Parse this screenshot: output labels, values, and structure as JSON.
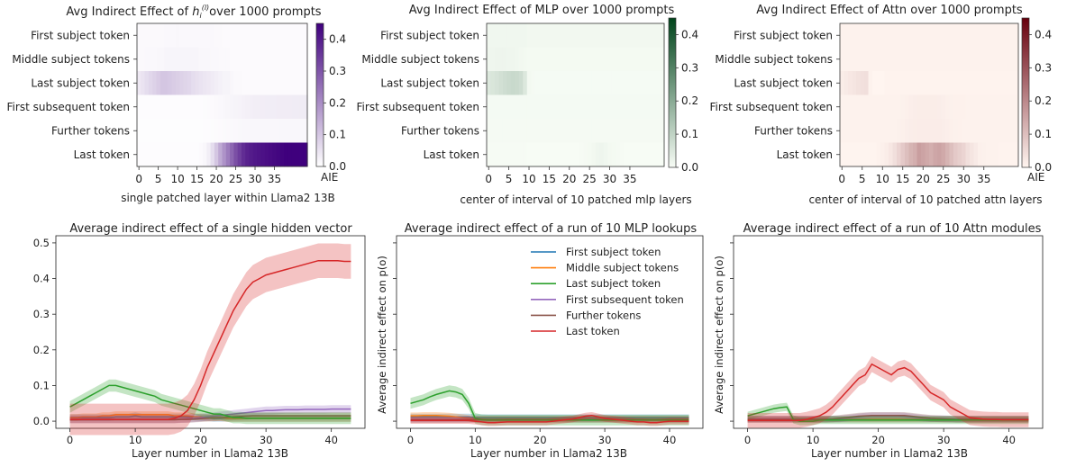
{
  "chart_data": [
    {
      "type": "heatmap",
      "title": "Avg Indirect Effect of h_i^(l) over 1000 prompts",
      "title_parts": [
        "Avg Indirect Effect of ",
        "h",
        "i",
        "(l)",
        "over 1000 prompts"
      ],
      "xlabel": "single patched layer within Llama2 13B",
      "xticks": [
        "0",
        "5",
        "10",
        "15",
        "20",
        "25",
        "30",
        "35"
      ],
      "rows": [
        "First subject token",
        "Middle subject tokens",
        "Last subject token",
        "First subsequent token",
        "Further tokens",
        "Last token"
      ],
      "colorbar": {
        "label": "AIE",
        "ticks": [
          "0.0",
          "0.1",
          "0.2",
          "0.3",
          "0.4"
        ],
        "range": [
          0,
          0.45
        ],
        "low": "#ffffff",
        "high": "#3f007d"
      },
      "cells": [
        [
          0.01,
          0.01,
          0.01,
          0.01,
          0.01,
          0.01,
          0.01,
          0.012,
          0.012,
          0.012,
          0.015,
          0.012,
          0.012,
          0.012,
          0.012,
          0.012,
          0.012,
          0.012,
          0.012,
          0.012,
          0.01,
          0.01,
          0.008,
          0.008,
          0.008,
          0.008,
          0.008,
          0.008,
          0.008,
          0.008,
          0.008,
          0.008,
          0.008,
          0.008,
          0.008,
          0.008,
          0.008,
          0.008,
          0.008,
          0.008,
          0.008,
          0.008,
          0.008,
          0.008
        ],
        [
          0.01,
          0.01,
          0.012,
          0.012,
          0.012,
          0.015,
          0.015,
          0.018,
          0.018,
          0.018,
          0.018,
          0.018,
          0.018,
          0.018,
          0.018,
          0.018,
          0.015,
          0.015,
          0.015,
          0.012,
          0.012,
          0.01,
          0.01,
          0.01,
          0.008,
          0.008,
          0.008,
          0.008,
          0.008,
          0.008,
          0.008,
          0.008,
          0.008,
          0.008,
          0.008,
          0.008,
          0.008,
          0.008,
          0.008,
          0.008,
          0.008,
          0.008,
          0.008,
          0.008
        ],
        [
          0.04,
          0.05,
          0.06,
          0.07,
          0.08,
          0.09,
          0.1,
          0.1,
          0.095,
          0.09,
          0.085,
          0.08,
          0.075,
          0.07,
          0.06,
          0.055,
          0.05,
          0.045,
          0.04,
          0.035,
          0.03,
          0.025,
          0.02,
          0.02,
          0.015,
          0.01,
          0.01,
          0.008,
          0.008,
          0.008,
          0.008,
          0.008,
          0.008,
          0.008,
          0.008,
          0.008,
          0.008,
          0.008,
          0.008,
          0.008,
          0.008,
          0.008,
          0.008,
          0.008
        ],
        [
          0.005,
          0.005,
          0.005,
          0.005,
          0.005,
          0.005,
          0.005,
          0.005,
          0.005,
          0.005,
          0.005,
          0.005,
          0.005,
          0.005,
          0.005,
          0.005,
          0.005,
          0.006,
          0.007,
          0.008,
          0.01,
          0.012,
          0.014,
          0.016,
          0.018,
          0.02,
          0.022,
          0.024,
          0.026,
          0.028,
          0.03,
          0.03,
          0.031,
          0.032,
          0.032,
          0.032,
          0.033,
          0.033,
          0.033,
          0.033,
          0.034,
          0.034,
          0.034,
          0.034
        ],
        [
          0.004,
          0.004,
          0.004,
          0.004,
          0.004,
          0.004,
          0.004,
          0.004,
          0.004,
          0.004,
          0.004,
          0.004,
          0.004,
          0.004,
          0.004,
          0.004,
          0.004,
          0.005,
          0.005,
          0.006,
          0.007,
          0.008,
          0.009,
          0.01,
          0.011,
          0.012,
          0.013,
          0.014,
          0.015,
          0.015,
          0.015,
          0.015,
          0.015,
          0.015,
          0.015,
          0.015,
          0.015,
          0.015,
          0.015,
          0.015,
          0.015,
          0.015,
          0.015,
          0.015
        ],
        [
          0.005,
          0.005,
          0.005,
          0.005,
          0.005,
          0.005,
          0.005,
          0.005,
          0.005,
          0.005,
          0.005,
          0.005,
          0.005,
          0.005,
          0.005,
          0.005,
          0.008,
          0.015,
          0.03,
          0.06,
          0.1,
          0.15,
          0.19,
          0.23,
          0.27,
          0.31,
          0.34,
          0.37,
          0.39,
          0.4,
          0.41,
          0.415,
          0.42,
          0.425,
          0.43,
          0.435,
          0.44,
          0.445,
          0.45,
          0.45,
          0.45,
          0.45,
          0.448,
          0.448
        ]
      ]
    },
    {
      "type": "heatmap",
      "title": "Avg Indirect Effect of MLP over 1000 prompts",
      "xlabel": "center of interval of 10 patched mlp layers",
      "xticks": [
        "0",
        "5",
        "10",
        "15",
        "20",
        "25",
        "30",
        "35"
      ],
      "rows": [
        "First subject token",
        "Middle subject tokens",
        "Last subject token",
        "First subsequent token",
        "Further tokens",
        "Last token"
      ],
      "colorbar": {
        "label": "",
        "ticks": [
          "0.0",
          "0.1",
          "0.2",
          "0.3",
          "0.4"
        ],
        "range": [
          0,
          0.45
        ],
        "low": "#f7fcf5",
        "high": "#00441b"
      },
      "cells": [
        [
          0.012,
          0.012,
          0.012,
          0.012,
          0.012,
          0.012,
          0.012,
          0.012,
          0.012,
          0.012,
          0.01,
          0.01,
          0.01,
          0.01,
          0.01,
          0.01,
          0.01,
          0.01,
          0.01,
          0.01,
          0.01,
          0.01,
          0.01,
          0.01,
          0.01,
          0.01,
          0.01,
          0.01,
          0.01,
          0.01,
          0.01,
          0.01,
          0.01,
          0.01,
          0.01,
          0.01,
          0.01,
          0.01,
          0.01,
          0.01,
          0.01,
          0.01,
          0.01,
          0.01
        ],
        [
          0.015,
          0.015,
          0.016,
          0.016,
          0.016,
          0.015,
          0.014,
          0.012,
          0.01,
          0.008,
          0.006,
          0.006,
          0.006,
          0.006,
          0.006,
          0.006,
          0.006,
          0.006,
          0.006,
          0.006,
          0.006,
          0.006,
          0.006,
          0.006,
          0.006,
          0.006,
          0.006,
          0.006,
          0.006,
          0.006,
          0.006,
          0.006,
          0.006,
          0.006,
          0.006,
          0.006,
          0.006,
          0.006,
          0.006,
          0.006,
          0.006,
          0.006,
          0.006,
          0.006
        ],
        [
          0.05,
          0.055,
          0.06,
          0.068,
          0.075,
          0.08,
          0.085,
          0.082,
          0.075,
          0.05,
          0.008,
          0.004,
          0.003,
          0.003,
          0.003,
          0.003,
          0.003,
          0.003,
          0.003,
          0.003,
          0.003,
          0.003,
          0.003,
          0.003,
          0.003,
          0.003,
          0.003,
          0.003,
          0.003,
          0.003,
          0.003,
          0.003,
          0.003,
          0.003,
          0.003,
          0.003,
          0.003,
          0.003,
          0.003,
          0.003,
          0.003,
          0.003,
          0.003,
          0.003
        ],
        [
          0.005,
          0.005,
          0.005,
          0.005,
          0.005,
          0.005,
          0.005,
          0.005,
          0.005,
          0.005,
          0.005,
          0.005,
          0.005,
          0.005,
          0.005,
          0.005,
          0.005,
          0.005,
          0.005,
          0.005,
          0.005,
          0.005,
          0.005,
          0.005,
          0.005,
          0.005,
          0.005,
          0.005,
          0.005,
          0.005,
          0.005,
          0.005,
          0.005,
          0.005,
          0.005,
          0.005,
          0.005,
          0.005,
          0.005,
          0.005,
          0.005,
          0.005,
          0.005,
          0.005
        ],
        [
          0.004,
          0.004,
          0.004,
          0.004,
          0.004,
          0.004,
          0.004,
          0.004,
          0.004,
          0.004,
          0.004,
          0.004,
          0.004,
          0.004,
          0.004,
          0.004,
          0.004,
          0.004,
          0.004,
          0.004,
          0.004,
          0.004,
          0.004,
          0.004,
          0.004,
          0.004,
          0.004,
          0.004,
          0.004,
          0.004,
          0.004,
          0.004,
          0.004,
          0.004,
          0.004,
          0.004,
          0.004,
          0.004,
          0.004,
          0.004,
          0.004,
          0.004,
          0.004,
          0.004
        ],
        [
          0.002,
          0.002,
          0.002,
          0.002,
          0.002,
          0.002,
          0.002,
          0.002,
          0.002,
          0.002,
          0.0,
          -0.002,
          -0.004,
          -0.004,
          -0.003,
          -0.002,
          -0.002,
          -0.002,
          -0.002,
          -0.002,
          -0.002,
          -0.002,
          0.0,
          0.002,
          0.004,
          0.006,
          0.01,
          0.014,
          0.016,
          0.012,
          0.008,
          0.006,
          0.004,
          0.002,
          0.0,
          -0.002,
          -0.002,
          -0.004,
          -0.004,
          -0.002,
          0.0,
          0.0,
          0.0,
          0.0
        ]
      ]
    },
    {
      "type": "heatmap",
      "title": "Avg Indirect Effect of Attn over 1000 prompts",
      "xlabel": "center of interval of 10 patched attn layers",
      "xticks": [
        "0",
        "5",
        "10",
        "15",
        "20",
        "25",
        "30",
        "35"
      ],
      "rows": [
        "First subject token",
        "Middle subject tokens",
        "Last subject token",
        "First subsequent token",
        "Further tokens",
        "Last token"
      ],
      "colorbar": {
        "label": "AIE",
        "ticks": [
          "0.0",
          "0.1",
          "0.2",
          "0.3",
          "0.4"
        ],
        "range": [
          0,
          0.45
        ],
        "low": "#fff5f0",
        "high": "#67000d"
      },
      "cells": [
        [
          0.005,
          0.005,
          0.005,
          0.005,
          0.005,
          0.005,
          0.005,
          0.005,
          0.005,
          0.005,
          0.005,
          0.005,
          0.005,
          0.005,
          0.005,
          0.005,
          0.005,
          0.005,
          0.005,
          0.005,
          0.005,
          0.005,
          0.005,
          0.005,
          0.005,
          0.005,
          0.005,
          0.005,
          0.005,
          0.005,
          0.005,
          0.005,
          0.005,
          0.005,
          0.005,
          0.005,
          0.005,
          0.005,
          0.005,
          0.005,
          0.005,
          0.005,
          0.005,
          0.005
        ],
        [
          0.005,
          0.005,
          0.005,
          0.005,
          0.005,
          0.005,
          0.005,
          0.005,
          0.005,
          0.005,
          0.005,
          0.005,
          0.005,
          0.005,
          0.005,
          0.005,
          0.005,
          0.005,
          0.005,
          0.005,
          0.005,
          0.005,
          0.005,
          0.005,
          0.005,
          0.005,
          0.005,
          0.005,
          0.005,
          0.005,
          0.005,
          0.005,
          0.005,
          0.005,
          0.005,
          0.005,
          0.005,
          0.005,
          0.005,
          0.005,
          0.005,
          0.005,
          0.005,
          0.005
        ],
        [
          0.015,
          0.02,
          0.025,
          0.03,
          0.035,
          0.038,
          0.04,
          0.005,
          0.0,
          0.0,
          0.0,
          0.003,
          0.003,
          0.003,
          0.003,
          0.003,
          0.003,
          0.003,
          0.003,
          0.003,
          0.003,
          0.003,
          0.003,
          0.003,
          0.003,
          0.003,
          0.003,
          0.003,
          0.003,
          0.003,
          0.003,
          0.003,
          0.003,
          0.003,
          0.003,
          0.003,
          0.003,
          0.003,
          0.003,
          0.003,
          0.003,
          0.003,
          0.003,
          0.003
        ],
        [
          0.006,
          0.006,
          0.006,
          0.006,
          0.006,
          0.006,
          0.006,
          0.006,
          0.006,
          0.006,
          0.006,
          0.006,
          0.006,
          0.006,
          0.006,
          0.008,
          0.01,
          0.012,
          0.014,
          0.015,
          0.015,
          0.015,
          0.015,
          0.015,
          0.014,
          0.012,
          0.01,
          0.008,
          0.007,
          0.007,
          0.007,
          0.006,
          0.006,
          0.006,
          0.006,
          0.006,
          0.006,
          0.006,
          0.006,
          0.006,
          0.006,
          0.006,
          0.006,
          0.006
        ],
        [
          0.005,
          0.005,
          0.005,
          0.005,
          0.005,
          0.005,
          0.005,
          0.005,
          0.005,
          0.005,
          0.005,
          0.005,
          0.005,
          0.006,
          0.008,
          0.01,
          0.012,
          0.014,
          0.015,
          0.016,
          0.016,
          0.016,
          0.016,
          0.016,
          0.016,
          0.014,
          0.012,
          0.01,
          0.008,
          0.007,
          0.006,
          0.006,
          0.005,
          0.005,
          0.005,
          0.005,
          0.005,
          0.005,
          0.005,
          0.005,
          0.005,
          0.005,
          0.005,
          0.005
        ],
        [
          0.002,
          0.002,
          0.002,
          0.002,
          0.002,
          0.002,
          0.002,
          0.002,
          0.002,
          0.005,
          0.01,
          0.015,
          0.025,
          0.04,
          0.06,
          0.08,
          0.1,
          0.12,
          0.13,
          0.16,
          0.15,
          0.14,
          0.13,
          0.145,
          0.15,
          0.14,
          0.12,
          0.1,
          0.08,
          0.07,
          0.06,
          0.04,
          0.03,
          0.02,
          0.01,
          0.008,
          0.006,
          0.005,
          0.005,
          0.004,
          0.004,
          0.004,
          0.004,
          0.004
        ]
      ]
    },
    {
      "type": "line",
      "title": "Average indirect effect of a single hidden vector",
      "xlabel": "Layer number in Llama2 13B",
      "ylabel": "",
      "xlim": [
        0,
        43
      ],
      "ylim": [
        -0.02,
        0.52
      ],
      "xticks": [
        0,
        10,
        20,
        30,
        40
      ],
      "yticks": [
        "0.0",
        "0.1",
        "0.2",
        "0.3",
        "0.4",
        "0.5"
      ],
      "series_source": "heatmap-0"
    },
    {
      "type": "line",
      "title": "Average indirect effect of a run of 10 MLP lookups",
      "xlabel": "Layer number in Llama2 13B",
      "ylabel": "Average indirect effect on p(o)",
      "xlim": [
        0,
        43
      ],
      "ylim": [
        -0.02,
        0.52
      ],
      "xticks": [
        0,
        10,
        20,
        30,
        40
      ],
      "series_source": "heatmap-1",
      "legend": {
        "position": "top-right",
        "entries": [
          "First subject token",
          "Middle subject tokens",
          "Last subject token",
          "First subsequent token",
          "Further tokens",
          "Last token"
        ],
        "colors": [
          "#1f77b4",
          "#ff7f0e",
          "#2ca02c",
          "#9467bd",
          "#8c564b",
          "#d62728"
        ]
      }
    },
    {
      "type": "line",
      "title": "Average indirect effect of a run of 10 Attn modules",
      "xlabel": "Layer number in Llama2 13B",
      "ylabel": "Average indirect effect on p(o)",
      "xlim": [
        0,
        43
      ],
      "ylim": [
        -0.02,
        0.52
      ],
      "xticks": [
        0,
        10,
        20,
        30,
        40
      ],
      "series_source": "heatmap-2"
    }
  ],
  "series_colors": [
    "#1f77b4",
    "#ff7f0e",
    "#2ca02c",
    "#9467bd",
    "#8c564b",
    "#d62728"
  ]
}
